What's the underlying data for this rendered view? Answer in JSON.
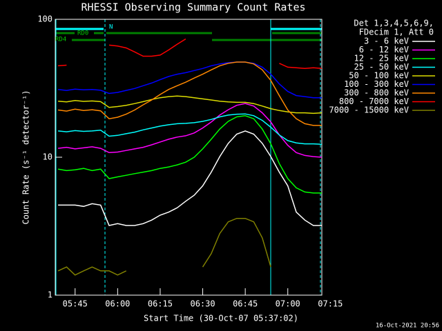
{
  "chart_data": {
    "type": "line",
    "title": "RHESSI Observing Summary Count Rates",
    "xlabel": "Start Time (30-Oct-07 05:37:02)",
    "ylabel": "Count Rate (s⁻¹ detector⁻¹)",
    "legend_header": [
      "Det 1,3,4,5,6,9,",
      "FDecim 1, Att 0"
    ],
    "footer": "16-Oct-2021 20:56",
    "annotations": [
      "RD0",
      "RD4",
      "N"
    ],
    "log_y": true,
    "xlim": [
      338,
      432
    ],
    "ylim": [
      1,
      100
    ],
    "yticks": [
      1,
      10,
      100
    ],
    "xticks": [
      {
        "value": 345,
        "label": "05:45"
      },
      {
        "value": 360,
        "label": "06:00"
      },
      {
        "value": 375,
        "label": "06:15"
      },
      {
        "value": 390,
        "label": "06:30"
      },
      {
        "value": 405,
        "label": "06:45"
      },
      {
        "value": 420,
        "label": "07:00"
      },
      {
        "value": 435,
        "label": "07:15"
      }
    ],
    "x": [
      339,
      342,
      345,
      348,
      351,
      354,
      357,
      360,
      363,
      366,
      369,
      372,
      375,
      378,
      381,
      384,
      387,
      390,
      393,
      396,
      399,
      402,
      405,
      408,
      411,
      414,
      417,
      420,
      423,
      426,
      429,
      432
    ],
    "series": [
      {
        "name": "3 - 6 keV",
        "color": "#ffffff",
        "values": [
          4.5,
          4.5,
          4.5,
          4.4,
          4.6,
          4.5,
          3.2,
          3.3,
          3.2,
          3.2,
          3.3,
          3.5,
          3.8,
          4.0,
          4.3,
          4.8,
          5.3,
          6.2,
          7.8,
          10.1,
          12.6,
          14.7,
          15.5,
          14.7,
          12.6,
          10.1,
          7.8,
          6.2,
          4.0,
          3.5,
          3.2,
          3.2
        ]
      },
      {
        "name": "6 - 12 keV",
        "color": "#ff00ff",
        "values": [
          11.6,
          11.8,
          11.5,
          11.7,
          11.9,
          11.6,
          10.8,
          10.9,
          11.2,
          11.5,
          11.8,
          12.3,
          12.9,
          13.5,
          14.0,
          14.3,
          15.0,
          16.3,
          18.0,
          20.2,
          22.1,
          23.8,
          24.5,
          23.5,
          21.0,
          18.0,
          14.5,
          12.2,
          10.8,
          10.3,
          10.1,
          10.0
        ]
      },
      {
        "name": "12 - 25 keV",
        "color": "#00ff00",
        "values": [
          8.2,
          8.0,
          8.1,
          8.3,
          8.0,
          8.2,
          7.0,
          7.2,
          7.4,
          7.6,
          7.8,
          8.0,
          8.3,
          8.5,
          8.8,
          9.2,
          10.0,
          11.5,
          13.5,
          16.0,
          18.2,
          19.6,
          20.0,
          19.0,
          16.0,
          12.5,
          9.0,
          7.0,
          6.0,
          5.6,
          5.5,
          5.5
        ]
      },
      {
        "name": "25 - 50 keV",
        "color": "#00ffff",
        "values": [
          15.5,
          15.3,
          15.6,
          15.4,
          15.5,
          15.7,
          14.2,
          14.4,
          14.8,
          15.2,
          15.8,
          16.3,
          16.8,
          17.2,
          17.5,
          17.6,
          17.8,
          18.2,
          18.8,
          19.6,
          20.2,
          20.5,
          20.6,
          20.0,
          18.5,
          16.5,
          14.5,
          13.2,
          12.7,
          12.5,
          12.5,
          12.4
        ]
      },
      {
        "name": "50 - 100 keV",
        "color": "#dddd00",
        "values": [
          25.5,
          25.2,
          25.8,
          25.4,
          25.6,
          25.3,
          23.0,
          23.3,
          23.8,
          24.5,
          25.3,
          26.2,
          27.0,
          27.5,
          27.8,
          27.5,
          27.0,
          26.5,
          26.0,
          25.5,
          25.2,
          25.0,
          25.0,
          24.5,
          23.5,
          22.5,
          21.8,
          21.3,
          21.0,
          21.0,
          20.8,
          21.0
        ]
      },
      {
        "name": "100 - 300 keV",
        "color": "#0000ff",
        "values": [
          31,
          30.5,
          31.2,
          30.8,
          31.0,
          30.6,
          29,
          29.5,
          30.5,
          31.5,
          33,
          34.5,
          36.5,
          38.5,
          40,
          41,
          42.5,
          44,
          46,
          47.5,
          48.5,
          49,
          49,
          48,
          45,
          40,
          34,
          30,
          28,
          27.5,
          27,
          27
        ]
      },
      {
        "name": "300 - 800 keV",
        "color": "#ff8800",
        "values": [
          22,
          21.6,
          22.3,
          21.8,
          22.1,
          21.7,
          19,
          19.5,
          20.5,
          22,
          24,
          26,
          28.5,
          31,
          33,
          35,
          37.5,
          40,
          43,
          46,
          48,
          49,
          49,
          47.5,
          43,
          36,
          28,
          22,
          19,
          17.5,
          17,
          17
        ]
      },
      {
        "name": "800 - 7000 keV",
        "color": "#ff0000",
        "values": [
          46,
          46.5,
          null,
          null,
          null,
          null,
          65,
          64,
          62,
          58,
          54,
          54,
          55,
          60,
          66,
          72,
          null,
          null,
          null,
          null,
          null,
          null,
          null,
          null,
          null,
          null,
          48,
          45,
          44.5,
          44,
          44.5,
          44
        ]
      },
      {
        "name": "7000 - 15000 keV",
        "color": "#808000",
        "values": [
          1.5,
          1.6,
          1.4,
          1.5,
          1.6,
          1.5,
          1.5,
          1.4,
          1.5,
          null,
          null,
          null,
          null,
          null,
          null,
          null,
          null,
          1.6,
          2.0,
          2.8,
          3.4,
          3.6,
          3.6,
          3.4,
          2.6,
          1.6,
          null,
          null,
          null,
          null,
          null,
          null
        ]
      }
    ]
  }
}
